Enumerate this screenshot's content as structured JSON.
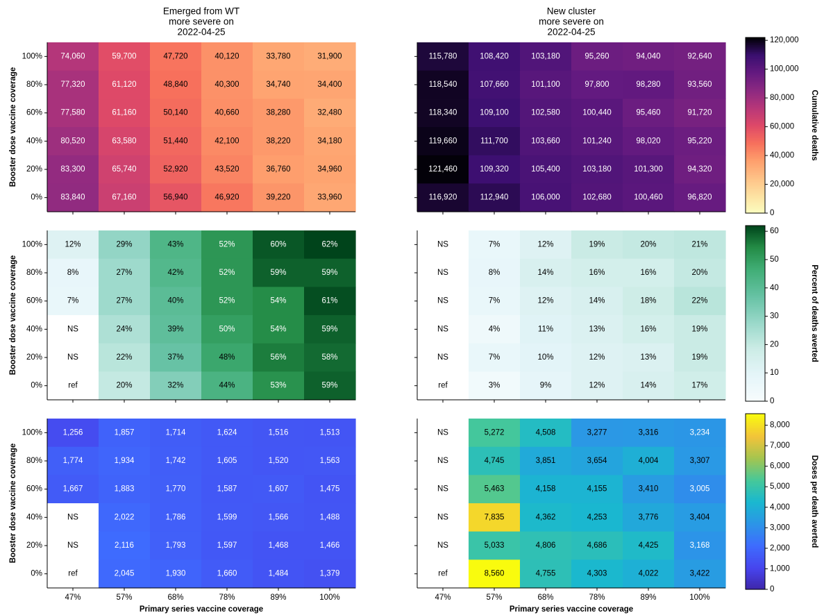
{
  "chart_data": {
    "type": "heatmap",
    "x_labels": [
      "47%",
      "57%",
      "68%",
      "78%",
      "89%",
      "100%"
    ],
    "y_labels": [
      "100%",
      "80%",
      "60%",
      "40%",
      "20%",
      "0%"
    ],
    "xlabel": "Primary series vaccine coverage",
    "ylabel": "Booster dose vaccine coverage",
    "column_titles": [
      [
        "Emerged from WT",
        "more severe on",
        "2022-04-25"
      ],
      [
        "New cluster",
        "more severe on",
        "2022-04-25"
      ]
    ],
    "colorbars": [
      {
        "label": "Cumulative deaths",
        "colormap": "magma_r",
        "range": [
          0,
          122000
        ],
        "ticks": [
          0,
          20000,
          40000,
          60000,
          80000,
          100000,
          120000
        ],
        "tick_labels": [
          "0",
          "20,000",
          "40,000",
          "60,000",
          "80,000",
          "100,000",
          "120,000"
        ]
      },
      {
        "label": "Percent of deaths averted",
        "colormap": "Greens",
        "range": [
          0,
          62
        ],
        "ticks": [
          0,
          10,
          20,
          30,
          40,
          50,
          60
        ],
        "tick_labels": [
          "0",
          "10",
          "20",
          "30",
          "40",
          "50",
          "60"
        ]
      },
      {
        "label": "Doses per death averted",
        "colormap": "plasma-like (indigo → blue → teal → green → yellow)",
        "range": [
          0,
          8560
        ],
        "ticks": [
          0,
          1000,
          2000,
          3000,
          4000,
          5000,
          6000,
          7000,
          8000
        ],
        "tick_labels": [
          "0",
          "1,000",
          "2,000",
          "3,000",
          "4,000",
          "5,000",
          "6,000",
          "7,000",
          "8,000"
        ]
      }
    ],
    "panels": [
      {
        "row": 0,
        "col": 0,
        "metric": "Cumulative deaths",
        "values": [
          [
            74060,
            59700,
            47720,
            40120,
            33780,
            31900
          ],
          [
            77320,
            61120,
            48840,
            40300,
            34740,
            34400
          ],
          [
            77580,
            61160,
            50140,
            40660,
            38280,
            32480
          ],
          [
            80520,
            63580,
            51440,
            42100,
            38220,
            34180
          ],
          [
            83300,
            65740,
            52920,
            43520,
            36760,
            34960
          ],
          [
            83840,
            67160,
            56940,
            46920,
            39220,
            33960
          ]
        ],
        "labels": [
          [
            "74,060",
            "59,700",
            "47,720",
            "40,120",
            "33,780",
            "31,900"
          ],
          [
            "77,320",
            "61,120",
            "48,840",
            "40,300",
            "34,740",
            "34,400"
          ],
          [
            "77,580",
            "61,160",
            "50,140",
            "40,660",
            "38,280",
            "32,480"
          ],
          [
            "80,520",
            "63,580",
            "51,440",
            "42,100",
            "38,220",
            "34,180"
          ],
          [
            "83,300",
            "65,740",
            "52,920",
            "43,520",
            "36,760",
            "34,960"
          ],
          [
            "83,840",
            "67,160",
            "56,940",
            "46,920",
            "39,220",
            "33,960"
          ]
        ]
      },
      {
        "row": 0,
        "col": 1,
        "metric": "Cumulative deaths",
        "values": [
          [
            115780,
            108420,
            103180,
            95260,
            94040,
            92640
          ],
          [
            118540,
            107660,
            101100,
            97800,
            98280,
            93560
          ],
          [
            118340,
            109100,
            102580,
            100440,
            95460,
            91720
          ],
          [
            119660,
            111700,
            103660,
            101240,
            98020,
            95220
          ],
          [
            121460,
            109320,
            105400,
            103180,
            101300,
            94320
          ],
          [
            116920,
            112940,
            106000,
            102680,
            100460,
            96820
          ]
        ],
        "labels": [
          [
            "115,780",
            "108,420",
            "103,180",
            "95,260",
            "94,040",
            "92,640"
          ],
          [
            "118,540",
            "107,660",
            "101,100",
            "97,800",
            "98,280",
            "93,560"
          ],
          [
            "118,340",
            "109,100",
            "102,580",
            "100,440",
            "95,460",
            "91,720"
          ],
          [
            "119,660",
            "111,700",
            "103,660",
            "101,240",
            "98,020",
            "95,220"
          ],
          [
            "121,460",
            "109,320",
            "105,400",
            "103,180",
            "101,300",
            "94,320"
          ],
          [
            "116,920",
            "112,940",
            "106,000",
            "102,680",
            "100,460",
            "96,820"
          ]
        ]
      },
      {
        "row": 1,
        "col": 0,
        "metric": "Percent of deaths averted",
        "values": [
          [
            12,
            29,
            43,
            52,
            60,
            62
          ],
          [
            8,
            27,
            42,
            52,
            59,
            59
          ],
          [
            7,
            27,
            40,
            52,
            54,
            61
          ],
          [
            null,
            24,
            39,
            50,
            54,
            59
          ],
          [
            null,
            22,
            37,
            48,
            56,
            58
          ],
          [
            null,
            20,
            32,
            44,
            53,
            59
          ]
        ],
        "labels": [
          [
            "12%",
            "29%",
            "43%",
            "52%",
            "60%",
            "62%"
          ],
          [
            "8%",
            "27%",
            "42%",
            "52%",
            "59%",
            "59%"
          ],
          [
            "7%",
            "27%",
            "40%",
            "52%",
            "54%",
            "61%"
          ],
          [
            "NS",
            "24%",
            "39%",
            "50%",
            "54%",
            "59%"
          ],
          [
            "NS",
            "22%",
            "37%",
            "48%",
            "56%",
            "58%"
          ],
          [
            "ref",
            "20%",
            "32%",
            "44%",
            "53%",
            "59%"
          ]
        ]
      },
      {
        "row": 1,
        "col": 1,
        "metric": "Percent of deaths averted",
        "values": [
          [
            null,
            7,
            12,
            19,
            20,
            21
          ],
          [
            null,
            8,
            14,
            16,
            16,
            20
          ],
          [
            null,
            7,
            12,
            14,
            18,
            22
          ],
          [
            null,
            4,
            11,
            13,
            16,
            19
          ],
          [
            null,
            7,
            10,
            12,
            13,
            19
          ],
          [
            null,
            3,
            9,
            12,
            14,
            17
          ]
        ],
        "labels": [
          [
            "NS",
            "7%",
            "12%",
            "19%",
            "20%",
            "21%"
          ],
          [
            "NS",
            "8%",
            "14%",
            "16%",
            "16%",
            "20%"
          ],
          [
            "NS",
            "7%",
            "12%",
            "14%",
            "18%",
            "22%"
          ],
          [
            "NS",
            "4%",
            "11%",
            "13%",
            "16%",
            "19%"
          ],
          [
            "NS",
            "7%",
            "10%",
            "12%",
            "13%",
            "19%"
          ],
          [
            "ref",
            "3%",
            "9%",
            "12%",
            "14%",
            "17%"
          ]
        ]
      },
      {
        "row": 2,
        "col": 0,
        "metric": "Doses per death averted",
        "values": [
          [
            1256,
            1857,
            1714,
            1624,
            1516,
            1513
          ],
          [
            1774,
            1934,
            1742,
            1605,
            1520,
            1563
          ],
          [
            1667,
            1883,
            1770,
            1587,
            1607,
            1475
          ],
          [
            null,
            2022,
            1786,
            1599,
            1566,
            1488
          ],
          [
            null,
            2116,
            1793,
            1597,
            1468,
            1466
          ],
          [
            null,
            2045,
            1930,
            1660,
            1484,
            1379
          ]
        ],
        "labels": [
          [
            "1,256",
            "1,857",
            "1,714",
            "1,624",
            "1,516",
            "1,513"
          ],
          [
            "1,774",
            "1,934",
            "1,742",
            "1,605",
            "1,520",
            "1,563"
          ],
          [
            "1,667",
            "1,883",
            "1,770",
            "1,587",
            "1,607",
            "1,475"
          ],
          [
            "NS",
            "2,022",
            "1,786",
            "1,599",
            "1,566",
            "1,488"
          ],
          [
            "NS",
            "2,116",
            "1,793",
            "1,597",
            "1,468",
            "1,466"
          ],
          [
            "ref",
            "2,045",
            "1,930",
            "1,660",
            "1,484",
            "1,379"
          ]
        ]
      },
      {
        "row": 2,
        "col": 1,
        "metric": "Doses per death averted",
        "values": [
          [
            null,
            5272,
            4508,
            3277,
            3316,
            3234
          ],
          [
            null,
            4745,
            3851,
            3654,
            4004,
            3307
          ],
          [
            null,
            5463,
            4158,
            4155,
            3410,
            3005
          ],
          [
            null,
            7835,
            4362,
            4253,
            3776,
            3404
          ],
          [
            null,
            5033,
            4806,
            4686,
            4425,
            3168
          ],
          [
            null,
            8560,
            4755,
            4303,
            4022,
            3422
          ]
        ],
        "labels": [
          [
            "NS",
            "5,272",
            "4,508",
            "3,277",
            "3,316",
            "3,234"
          ],
          [
            "NS",
            "4,745",
            "3,851",
            "3,654",
            "4,004",
            "3,307"
          ],
          [
            "NS",
            "5,463",
            "4,158",
            "4,155",
            "3,410",
            "3,005"
          ],
          [
            "NS",
            "7,835",
            "4,362",
            "4,253",
            "3,776",
            "3,404"
          ],
          [
            "NS",
            "5,033",
            "4,806",
            "4,686",
            "4,425",
            "3,168"
          ],
          [
            "ref",
            "8,560",
            "4,755",
            "4,303",
            "4,022",
            "3,422"
          ]
        ]
      }
    ]
  }
}
